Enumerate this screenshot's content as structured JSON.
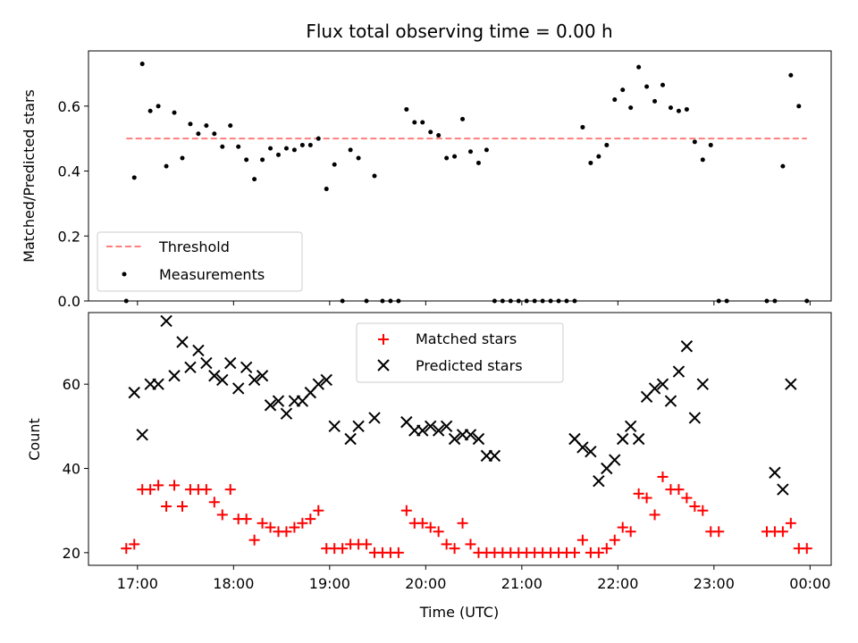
{
  "chart_data": [
    {
      "type": "scatter",
      "title": "Flux total observing time = 0.00 h",
      "xlabel": "",
      "ylabel": "Matched/Predicted stars",
      "ylim": [
        0,
        0.77
      ],
      "yticks": [
        0.0,
        0.2,
        0.4,
        0.6
      ],
      "ytick_labels": [
        "0.0",
        "0.2",
        "0.4",
        "0.6"
      ],
      "legend_position": "lower-left",
      "threshold": {
        "name": "Threshold",
        "value": 0.5,
        "color": "#ff7f7f"
      },
      "series": [
        {
          "name": "Measurements",
          "color": "#000000",
          "x": [
            "16:53",
            "16:58",
            "17:03",
            "17:08",
            "17:13",
            "17:18",
            "17:23",
            "17:28",
            "17:33",
            "17:38",
            "17:43",
            "17:48",
            "17:53",
            "17:58",
            "18:03",
            "18:08",
            "18:13",
            "18:18",
            "18:23",
            "18:28",
            "18:33",
            "18:38",
            "18:43",
            "18:48",
            "18:53",
            "18:58",
            "19:03",
            "19:08",
            "19:13",
            "19:18",
            "19:23",
            "19:28",
            "19:33",
            "19:38",
            "19:43",
            "19:48",
            "19:53",
            "19:58",
            "20:03",
            "20:08",
            "20:13",
            "20:18",
            "20:23",
            "20:28",
            "20:33",
            "20:38",
            "20:43",
            "20:48",
            "20:53",
            "20:58",
            "21:03",
            "21:08",
            "21:13",
            "21:18",
            "21:23",
            "21:28",
            "21:33",
            "21:38",
            "21:43",
            "21:48",
            "21:53",
            "21:58",
            "22:03",
            "22:08",
            "22:13",
            "22:18",
            "22:23",
            "22:28",
            "22:33",
            "22:38",
            "22:43",
            "22:48",
            "22:53",
            "22:58",
            "23:03",
            "23:08",
            "23:33",
            "23:38",
            "23:43",
            "23:48",
            "23:53",
            "23:58"
          ],
          "y": [
            0.0,
            0.38,
            0.73,
            0.585,
            0.6,
            0.415,
            0.58,
            0.44,
            0.545,
            0.515,
            0.54,
            0.515,
            0.475,
            0.54,
            0.475,
            0.435,
            0.375,
            0.435,
            0.47,
            0.45,
            0.47,
            0.465,
            0.48,
            0.48,
            0.5,
            0.345,
            0.42,
            0.0,
            0.465,
            0.44,
            0.0,
            0.385,
            0.0,
            0.0,
            0.0,
            0.59,
            0.55,
            0.55,
            0.52,
            0.51,
            0.44,
            0.445,
            0.56,
            0.46,
            0.425,
            0.465,
            0.0,
            0.0,
            0.0,
            0.0,
            0.0,
            0.0,
            0.0,
            0.0,
            0.0,
            0.0,
            0.0,
            0.535,
            0.425,
            0.445,
            0.48,
            0.62,
            0.65,
            0.595,
            0.72,
            0.66,
            0.615,
            0.665,
            0.595,
            0.585,
            0.59,
            0.49,
            0.435,
            0.48,
            0.0,
            0.0,
            0.0,
            0.0,
            0.415,
            0.695,
            0.6,
            0.0
          ]
        }
      ]
    },
    {
      "type": "scatter",
      "title": "",
      "xlabel": "Time (UTC)",
      "ylabel": "Count",
      "ylim": [
        17,
        77
      ],
      "yticks": [
        20,
        40,
        60
      ],
      "ytick_labels": [
        "20",
        "40",
        "60"
      ],
      "xticks": [
        "17:00",
        "18:00",
        "19:00",
        "20:00",
        "21:00",
        "22:00",
        "23:00",
        "00:00"
      ],
      "xlim_hours": [
        16.49,
        24.22
      ],
      "legend_position": "upper-center",
      "series": [
        {
          "name": "Matched stars",
          "marker": "+",
          "color": "#ff0000",
          "x": [
            "16:53",
            "16:58",
            "17:03",
            "17:08",
            "17:13",
            "17:18",
            "17:23",
            "17:28",
            "17:33",
            "17:38",
            "17:43",
            "17:48",
            "17:53",
            "17:58",
            "18:03",
            "18:08",
            "18:13",
            "18:18",
            "18:23",
            "18:28",
            "18:33",
            "18:38",
            "18:43",
            "18:48",
            "18:53",
            "18:58",
            "19:03",
            "19:08",
            "19:13",
            "19:18",
            "19:23",
            "19:28",
            "19:33",
            "19:38",
            "19:43",
            "19:48",
            "19:53",
            "19:58",
            "20:03",
            "20:08",
            "20:13",
            "20:18",
            "20:23",
            "20:28",
            "20:33",
            "20:38",
            "20:43",
            "20:48",
            "20:53",
            "20:58",
            "21:03",
            "21:08",
            "21:13",
            "21:18",
            "21:23",
            "21:28",
            "21:33",
            "21:38",
            "21:43",
            "21:48",
            "21:53",
            "21:58",
            "22:03",
            "22:08",
            "22:13",
            "22:18",
            "22:23",
            "22:28",
            "22:33",
            "22:38",
            "22:43",
            "22:48",
            "22:53",
            "22:58",
            "23:03",
            "23:33",
            "23:38",
            "23:43",
            "23:48",
            "23:53",
            "23:58"
          ],
          "y": [
            21,
            22,
            35,
            35,
            36,
            31,
            36,
            31,
            35,
            35,
            35,
            32,
            29,
            35,
            28,
            28,
            23,
            27,
            26,
            25,
            25,
            26,
            27,
            28,
            30,
            21,
            21,
            21,
            22,
            22,
            22,
            20,
            20,
            20,
            20,
            30,
            27,
            27,
            26,
            25,
            22,
            21,
            27,
            22,
            20,
            20,
            20,
            20,
            20,
            20,
            20,
            20,
            20,
            20,
            20,
            20,
            20,
            23,
            20,
            20,
            21,
            23,
            26,
            25,
            34,
            33,
            29,
            38,
            35,
            35,
            33,
            31,
            30,
            25,
            25,
            25,
            25,
            25,
            27,
            21,
            21
          ]
        },
        {
          "name": "Predicted stars",
          "marker": "x",
          "color": "#000000",
          "x": [
            "16:58",
            "17:03",
            "17:08",
            "17:13",
            "17:18",
            "17:23",
            "17:28",
            "17:33",
            "17:38",
            "17:43",
            "17:48",
            "17:53",
            "17:58",
            "18:03",
            "18:08",
            "18:13",
            "18:18",
            "18:23",
            "18:28",
            "18:33",
            "18:38",
            "18:43",
            "18:48",
            "18:53",
            "18:58",
            "19:03",
            "19:13",
            "19:18",
            "19:28",
            "19:48",
            "19:53",
            "19:58",
            "20:03",
            "20:08",
            "20:13",
            "20:18",
            "20:23",
            "20:28",
            "20:33",
            "20:38",
            "20:43",
            "21:33",
            "21:38",
            "21:43",
            "21:48",
            "21:53",
            "21:58",
            "22:03",
            "22:08",
            "22:13",
            "22:18",
            "22:23",
            "22:28",
            "22:33",
            "22:38",
            "22:43",
            "22:48",
            "22:53",
            "23:38",
            "23:43",
            "23:48"
          ],
          "y": [
            58,
            48,
            60,
            60,
            75,
            62,
            70,
            64,
            68,
            65,
            62,
            61,
            65,
            59,
            64,
            61,
            62,
            55,
            56,
            53,
            56,
            56,
            58,
            60,
            61,
            50,
            47,
            50,
            52,
            51,
            49,
            49,
            50,
            49,
            50,
            47,
            48,
            48,
            47,
            43,
            43,
            47,
            45,
            44,
            37,
            40,
            42,
            47,
            50,
            47,
            57,
            59,
            60,
            56,
            63,
            69,
            52,
            60,
            39,
            35,
            60
          ]
        }
      ]
    }
  ]
}
